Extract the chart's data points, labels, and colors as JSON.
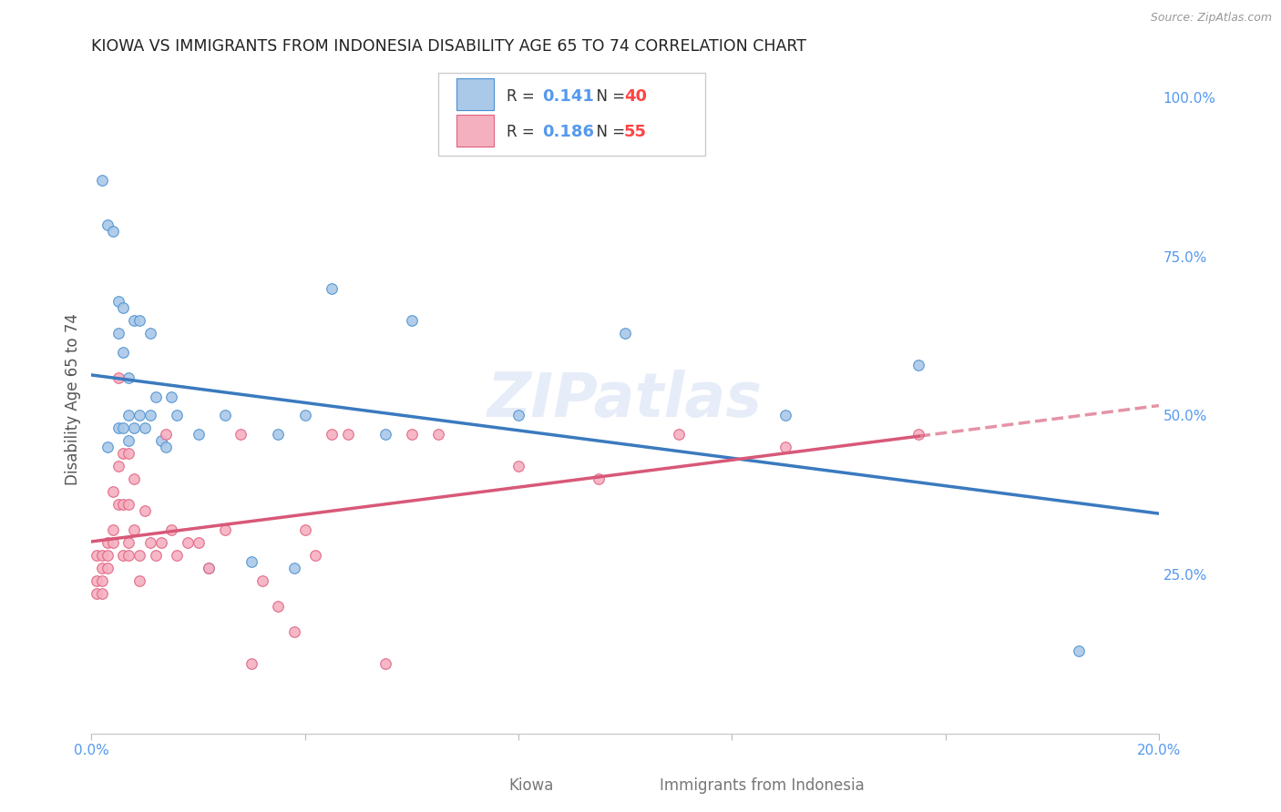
{
  "title": "KIOWA VS IMMIGRANTS FROM INDONESIA DISABILITY AGE 65 TO 74 CORRELATION CHART",
  "source": "Source: ZipAtlas.com",
  "ylabel": "Disability Age 65 to 74",
  "xmin": 0.0,
  "xmax": 0.2,
  "ymin": 0.0,
  "ymax": 1.05,
  "xtick_positions": [
    0.0,
    0.04,
    0.08,
    0.12,
    0.16,
    0.2
  ],
  "xticklabels": [
    "0.0%",
    "",
    "",
    "",
    "",
    "20.0%"
  ],
  "ytick_positions": [
    0.0,
    0.25,
    0.5,
    0.75,
    1.0
  ],
  "yticklabels_right": [
    "",
    "25.0%",
    "50.0%",
    "75.0%",
    "100.0%"
  ],
  "kiowa_R": "0.141",
  "kiowa_N": "40",
  "indonesia_R": "0.186",
  "indonesia_N": "55",
  "kiowa_face_color": "#aac8e8",
  "kiowa_edge_color": "#4a90d0",
  "indonesia_face_color": "#f5b0c0",
  "indonesia_edge_color": "#e06080",
  "kiowa_line_color": "#3a7abf",
  "indonesia_line_color": "#d85878",
  "tick_color": "#5599ee",
  "grid_color": "#d4dce8",
  "background_color": "#ffffff",
  "title_color": "#222222",
  "source_color": "#999999",
  "watermark": "ZIPatlas",
  "kiowa_x": [
    0.002,
    0.003,
    0.004,
    0.005,
    0.005,
    0.006,
    0.006,
    0.007,
    0.007,
    0.008,
    0.009,
    0.01,
    0.011,
    0.012,
    0.013,
    0.014,
    0.015,
    0.016,
    0.02,
    0.022,
    0.025,
    0.03,
    0.035,
    0.038,
    0.04,
    0.045,
    0.055,
    0.06,
    0.08,
    0.1,
    0.13,
    0.155,
    0.185,
    0.003,
    0.005,
    0.006,
    0.007,
    0.008,
    0.009,
    0.011
  ],
  "kiowa_y": [
    0.87,
    0.8,
    0.79,
    0.68,
    0.63,
    0.67,
    0.6,
    0.56,
    0.5,
    0.65,
    0.5,
    0.48,
    0.63,
    0.53,
    0.46,
    0.45,
    0.53,
    0.5,
    0.47,
    0.26,
    0.5,
    0.27,
    0.47,
    0.26,
    0.5,
    0.7,
    0.47,
    0.65,
    0.5,
    0.63,
    0.5,
    0.58,
    0.13,
    0.45,
    0.48,
    0.48,
    0.46,
    0.48,
    0.65,
    0.5
  ],
  "indonesia_x": [
    0.001,
    0.001,
    0.002,
    0.002,
    0.002,
    0.003,
    0.003,
    0.004,
    0.004,
    0.005,
    0.005,
    0.005,
    0.006,
    0.006,
    0.007,
    0.007,
    0.007,
    0.008,
    0.008,
    0.009,
    0.009,
    0.01,
    0.011,
    0.012,
    0.013,
    0.014,
    0.015,
    0.016,
    0.018,
    0.02,
    0.022,
    0.025,
    0.028,
    0.03,
    0.032,
    0.035,
    0.038,
    0.04,
    0.042,
    0.045,
    0.048,
    0.055,
    0.06,
    0.065,
    0.08,
    0.095,
    0.11,
    0.13,
    0.155,
    0.001,
    0.002,
    0.003,
    0.004,
    0.006,
    0.007
  ],
  "indonesia_y": [
    0.28,
    0.24,
    0.28,
    0.26,
    0.24,
    0.3,
    0.28,
    0.38,
    0.32,
    0.56,
    0.42,
    0.36,
    0.44,
    0.36,
    0.44,
    0.36,
    0.3,
    0.4,
    0.32,
    0.28,
    0.24,
    0.35,
    0.3,
    0.28,
    0.3,
    0.47,
    0.32,
    0.28,
    0.3,
    0.3,
    0.26,
    0.32,
    0.47,
    0.11,
    0.24,
    0.2,
    0.16,
    0.32,
    0.28,
    0.47,
    0.47,
    0.11,
    0.47,
    0.47,
    0.42,
    0.4,
    0.47,
    0.45,
    0.47,
    0.22,
    0.22,
    0.26,
    0.3,
    0.28,
    0.28
  ],
  "bottom_labels": [
    "Kiowa",
    "Immigrants from Indonesia"
  ],
  "legend_box_color": "#ffffff",
  "legend_edge_color": "#cccccc",
  "R_text_color": "#5599ee",
  "N_text_color": "#ff4444"
}
